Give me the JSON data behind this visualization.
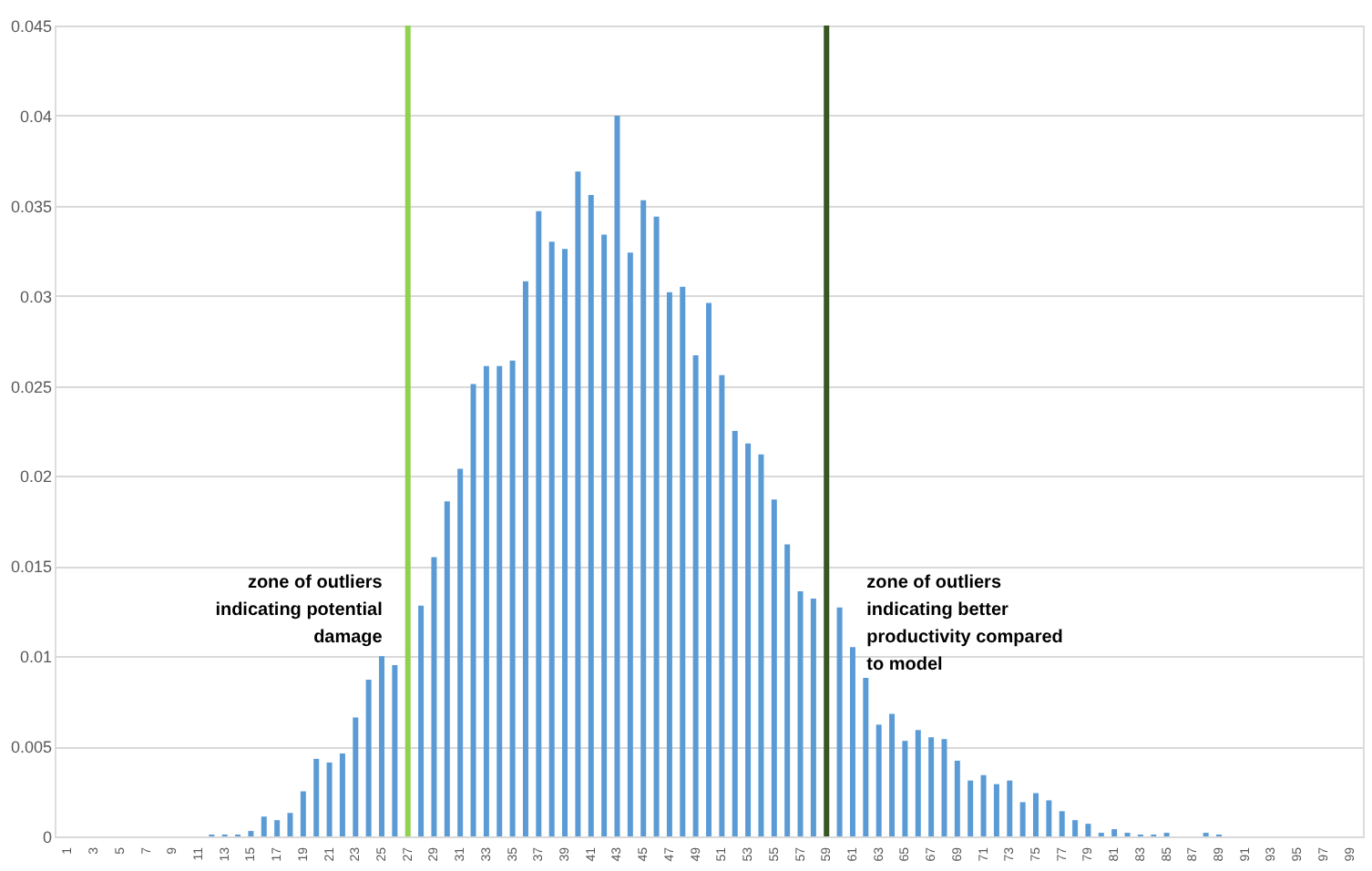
{
  "chart_data": {
    "type": "bar",
    "x": [
      1,
      2,
      3,
      4,
      5,
      6,
      7,
      8,
      9,
      10,
      11,
      12,
      13,
      14,
      15,
      16,
      17,
      18,
      19,
      20,
      21,
      22,
      23,
      24,
      25,
      26,
      27,
      28,
      29,
      30,
      31,
      32,
      33,
      34,
      35,
      36,
      37,
      38,
      39,
      40,
      41,
      42,
      43,
      44,
      45,
      46,
      47,
      48,
      49,
      50,
      51,
      52,
      53,
      54,
      55,
      56,
      57,
      58,
      59,
      60,
      61,
      62,
      63,
      64,
      65,
      66,
      67,
      68,
      69,
      70,
      71,
      72,
      73,
      74,
      75,
      76,
      77,
      78,
      79,
      80,
      81,
      82,
      83,
      84,
      85,
      86,
      87,
      88,
      89,
      90,
      91,
      92,
      93,
      94,
      95,
      96,
      97,
      98,
      99
    ],
    "values": [
      0,
      0,
      0,
      0,
      0,
      0,
      0,
      0,
      0,
      0,
      0,
      0.0001,
      0.0001,
      0.0001,
      0.0003,
      0.0011,
      0.0009,
      0.0013,
      0.0025,
      0.0043,
      0.0041,
      0.0046,
      0.0066,
      0.0087,
      0.01,
      0.0095,
      null,
      0.0128,
      0.0155,
      0.0186,
      0.0204,
      0.0251,
      0.0261,
      0.0261,
      0.0264,
      0.0308,
      0.0347,
      0.033,
      0.0326,
      0.0369,
      0.0356,
      0.0334,
      0.04,
      0.0324,
      0.0353,
      0.0344,
      0.0302,
      0.0305,
      0.0267,
      0.0296,
      0.0256,
      0.0225,
      0.0218,
      0.0212,
      0.0187,
      0.0162,
      0.0136,
      0.0132,
      null,
      0.0127,
      0.0105,
      0.0088,
      0.0062,
      0.0068,
      0.0053,
      0.0059,
      0.0055,
      0.0054,
      0.0042,
      0.0031,
      0.0034,
      0.0029,
      0.0031,
      0.0019,
      0.0024,
      0.002,
      0.0014,
      0.0009,
      0.0007,
      0.0002,
      0.0004,
      0.0002,
      0.0001,
      0.0001,
      0.0002,
      0,
      0,
      0.0002,
      0.0001,
      0,
      0,
      0,
      0,
      0,
      0,
      0,
      0,
      0,
      0
    ],
    "color": "#5b9bd5",
    "xlim": [
      0,
      100
    ],
    "xticks": [
      1,
      3,
      5,
      7,
      9,
      11,
      13,
      15,
      17,
      19,
      21,
      23,
      25,
      27,
      29,
      31,
      33,
      35,
      37,
      39,
      41,
      43,
      45,
      47,
      49,
      51,
      53,
      55,
      57,
      59,
      61,
      63,
      65,
      67,
      69,
      71,
      73,
      75,
      77,
      79,
      81,
      83,
      85,
      87,
      89,
      91,
      93,
      95,
      97,
      99
    ],
    "ylim": [
      0,
      0.045
    ],
    "yticks": [
      0,
      0.005,
      0.01,
      0.015,
      0.02,
      0.025,
      0.03,
      0.035,
      0.04,
      0.045
    ],
    "grid": "y",
    "ref_lines": [
      {
        "axis": "x",
        "value": 27,
        "label": "zone of outliers indicating potential damage",
        "color": "#92d050"
      },
      {
        "axis": "x",
        "value": 59,
        "label": "zone of outliers indicating better productivity compared to model",
        "color": "#375623"
      }
    ]
  }
}
